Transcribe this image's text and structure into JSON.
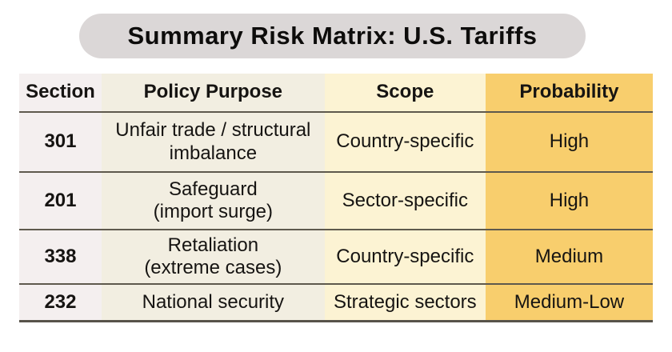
{
  "title": "Summary Risk Matrix: U.S. Tariffs",
  "colors": {
    "title_pill_bg": "#dbd7d7",
    "section_column_bg": "#f4efef",
    "purpose_column_bg": "#f2eee1",
    "scope_column_bg": "#fcf3d3",
    "probability_column_bg": "#f8ce6d",
    "rule_line": "#5e594d",
    "text": "#161412"
  },
  "table": {
    "columns": [
      {
        "key": "section",
        "label": "Section"
      },
      {
        "key": "purpose",
        "label": "Policy Purpose"
      },
      {
        "key": "scope",
        "label": "Scope"
      },
      {
        "key": "probability",
        "label": "Probability"
      }
    ],
    "rows": [
      {
        "section": "301",
        "purpose": "Unfair trade / structural\nimbalance",
        "scope": "Country-specific",
        "probability": "High"
      },
      {
        "section": "201",
        "purpose": "Safeguard\n(import surge)",
        "scope": "Sector-specific",
        "probability": "High"
      },
      {
        "section": "338",
        "purpose": "Retaliation\n(extreme cases)",
        "scope": "Country-specific",
        "probability": "Medium"
      },
      {
        "section": "232",
        "purpose": "National security",
        "scope": "Strategic sectors",
        "probability": "Medium-Low"
      }
    ]
  },
  "chart_data": {
    "type": "table",
    "title": "Summary Risk Matrix: U.S. Tariffs",
    "columns": [
      "Section",
      "Policy Purpose",
      "Scope",
      "Probability"
    ],
    "rows": [
      [
        "301",
        "Unfair trade / structural imbalance",
        "Country-specific",
        "High"
      ],
      [
        "201",
        "Safeguard (import surge)",
        "Sector-specific",
        "High"
      ],
      [
        "338",
        "Retaliation (extreme cases)",
        "Country-specific",
        "Medium"
      ],
      [
        "232",
        "National security",
        "Strategic sectors",
        "Medium-Low"
      ]
    ],
    "probability_levels": [
      "High",
      "High",
      "Medium",
      "Medium-Low"
    ],
    "layout_hints": {
      "title_style": "rounded gray pill, centered, bold",
      "highlight_column": "Probability (gold #f8ce6d)",
      "grid": "horizontal rules only, no vertical rules"
    }
  }
}
